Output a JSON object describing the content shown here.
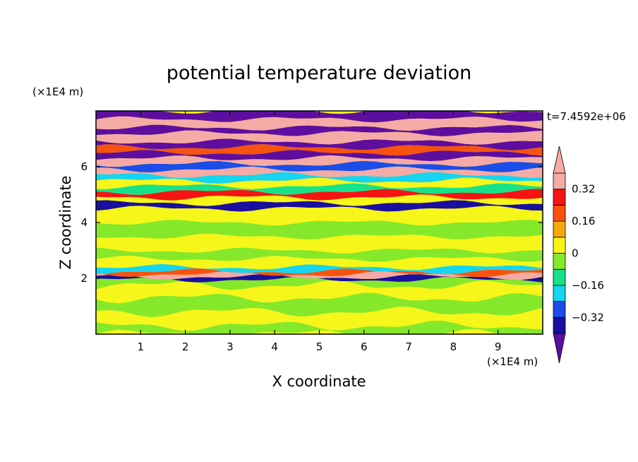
{
  "chart_data": {
    "type": "heatmap",
    "title": "potential temperature deviation",
    "xlabel": "X coordinate",
    "ylabel": "Z coordinate",
    "x_unit": "(×1E4 m)",
    "y_unit": "(×1E4 m)",
    "time_label": "t=7.4592e+06",
    "xlim": [
      0,
      10
    ],
    "ylim": [
      0,
      8
    ],
    "x_ticks": [
      "1",
      "2",
      "3",
      "4",
      "5",
      "6",
      "7",
      "8",
      "9"
    ],
    "x_tick_values": [
      1,
      2,
      3,
      4,
      5,
      6,
      7,
      8,
      9
    ],
    "y_ticks": [
      "2",
      "4",
      "6"
    ],
    "y_tick_values": [
      2,
      4,
      6
    ],
    "colorbar": {
      "levels": [
        -0.4,
        -0.32,
        -0.24,
        -0.16,
        -0.08,
        0,
        0.08,
        0.16,
        0.24,
        0.32,
        0.4
      ],
      "tick_labels": [
        "0.32",
        "0.16",
        "0",
        "−0.16",
        "−0.32"
      ],
      "tick_values": [
        0.32,
        0.16,
        0,
        -0.16,
        -0.32
      ],
      "colors": [
        "#5e0e9e",
        "#1a0f9e",
        "#1b4de8",
        "#15d5f0",
        "#17e28a",
        "#86e82a",
        "#f6f61a",
        "#f6a90f",
        "#f7520e",
        "#f51414",
        "#f6aaa6"
      ],
      "extend": "both"
    },
    "bands": [
      {
        "z": [
          0.0,
          0.3
        ],
        "value": -0.04
      },
      {
        "z": [
          0.3,
          0.8
        ],
        "value": 0.04
      },
      {
        "z": [
          0.8,
          1.3
        ],
        "value": -0.04
      },
      {
        "z": [
          1.3,
          1.75
        ],
        "value": 0.04
      },
      {
        "z": [
          1.75,
          1.95
        ],
        "value": -0.04
      },
      {
        "z": [
          1.95,
          2.05
        ],
        "value": -0.36
      },
      {
        "z": [
          2.05,
          2.15
        ],
        "value": 0.42
      },
      {
        "z": [
          2.15,
          2.25
        ],
        "value": 0.2
      },
      {
        "z": [
          2.25,
          2.4
        ],
        "value": -0.2
      },
      {
        "z": [
          2.4,
          2.7
        ],
        "value": 0.04
      },
      {
        "z": [
          2.7,
          3.0
        ],
        "value": -0.04
      },
      {
        "z": [
          3.0,
          3.5
        ],
        "value": 0.04
      },
      {
        "z": [
          3.5,
          4.0
        ],
        "value": -0.04
      },
      {
        "z": [
          4.0,
          4.5
        ],
        "value": 0.04
      },
      {
        "z": [
          4.5,
          4.7
        ],
        "value": -0.36
      },
      {
        "z": [
          4.7,
          4.9
        ],
        "value": 0.04
      },
      {
        "z": [
          4.9,
          5.1
        ],
        "value": 0.28
      },
      {
        "z": [
          5.1,
          5.3
        ],
        "value": -0.12
      },
      {
        "z": [
          5.3,
          5.5
        ],
        "value": 0.04
      },
      {
        "z": [
          5.5,
          5.7
        ],
        "value": -0.2
      },
      {
        "z": [
          5.7,
          5.9
        ],
        "value": 0.42
      },
      {
        "z": [
          5.9,
          6.1
        ],
        "value": -0.28
      },
      {
        "z": [
          6.1,
          6.3
        ],
        "value": 0.36
      },
      {
        "z": [
          6.3,
          6.5
        ],
        "value": -0.44
      },
      {
        "z": [
          6.5,
          6.7
        ],
        "value": 0.2
      },
      {
        "z": [
          6.7,
          6.9
        ],
        "value": -0.44
      },
      {
        "z": [
          6.9,
          7.2
        ],
        "value": 0.44
      },
      {
        "z": [
          7.2,
          7.4
        ],
        "value": -0.44
      },
      {
        "z": [
          7.4,
          7.7
        ],
        "value": 0.44
      },
      {
        "z": [
          7.7,
          8.0
        ],
        "value": -0.44
      }
    ]
  }
}
